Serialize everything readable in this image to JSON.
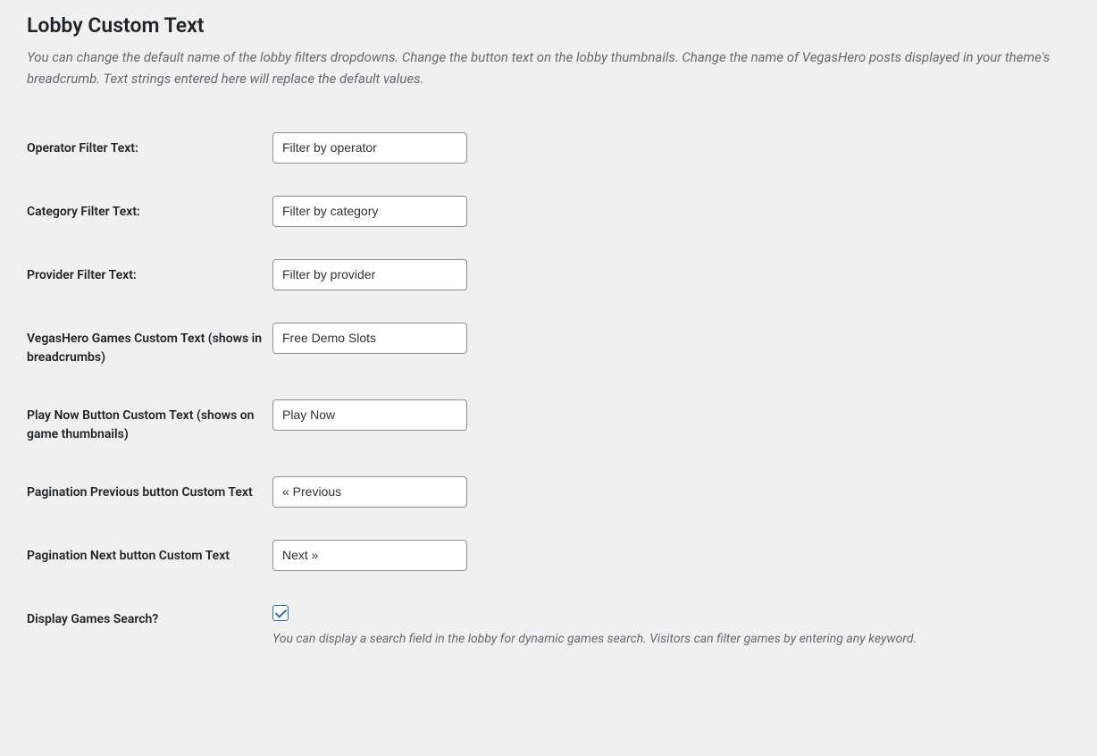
{
  "heading": "Lobby Custom Text",
  "description": "You can change the default name of the lobby filters dropdowns. Change the button text on the lobby thumbnails. Change the name of VegasHero posts displayed in your theme's breadcrumb. Text strings entered here will replace the default values.",
  "fields": {
    "operator_filter": {
      "label": "Operator Filter Text:",
      "value": "Filter by operator"
    },
    "category_filter": {
      "label": "Category Filter Text:",
      "value": "Filter by category"
    },
    "provider_filter": {
      "label": "Provider Filter Text:",
      "value": "Filter by provider"
    },
    "games_custom_text": {
      "label": "VegasHero Games Custom Text (shows in breadcrumbs)",
      "value": "Free Demo Slots"
    },
    "play_now_button": {
      "label": "Play Now Button Custom Text (shows on game thumbnails)",
      "value": "Play Now"
    },
    "pagination_previous": {
      "label": "Pagination Previous button Custom Text",
      "value": "« Previous"
    },
    "pagination_next": {
      "label": "Pagination Next button Custom Text",
      "value": "Next »"
    },
    "display_search": {
      "label": "Display Games Search?",
      "checked": true,
      "help": "You can display a search field in the lobby for dynamic games search. Visitors can filter games by entering any keyword."
    }
  },
  "colors": {
    "background": "#f0f0f1",
    "text_primary": "#1d2327",
    "text_muted": "#646970",
    "input_border": "#8c8f94",
    "input_bg": "#ffffff",
    "accent": "#2271b1"
  }
}
